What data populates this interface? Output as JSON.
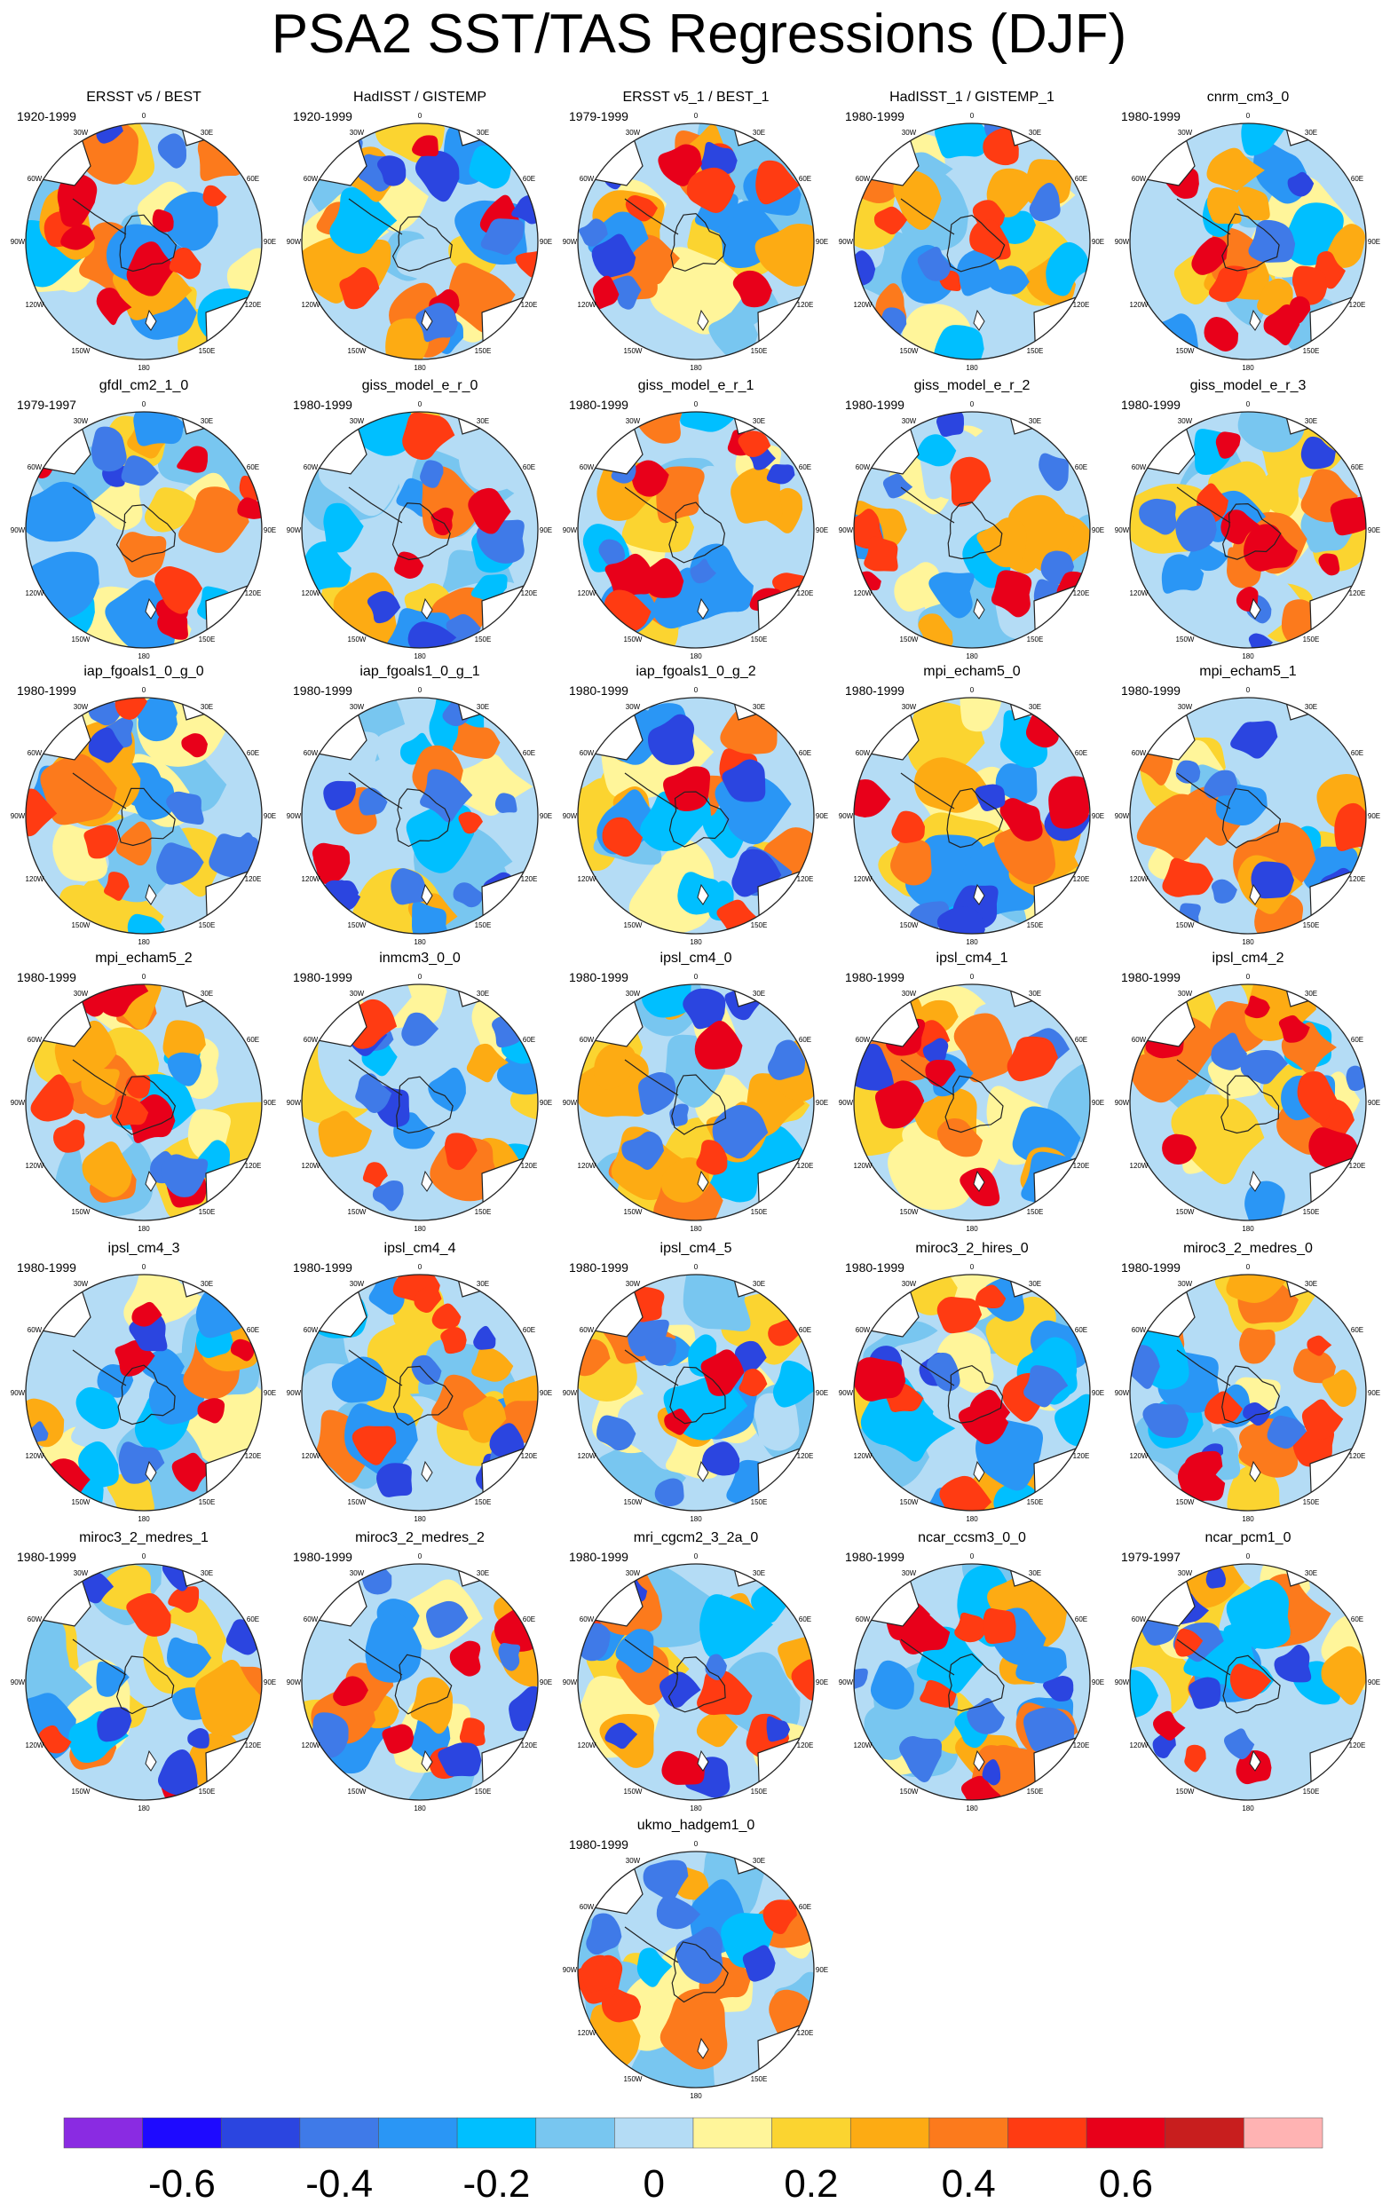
{
  "title": "PSA2 SST/TAS Regressions (DJF)",
  "panels": [
    {
      "name": "ERSST v5 / BEST",
      "period": "1920-1999"
    },
    {
      "name": "HadISST / GISTEMP",
      "period": "1920-1999"
    },
    {
      "name": "ERSST v5_1 / BEST_1",
      "period": "1979-1999"
    },
    {
      "name": "HadISST_1 / GISTEMP_1",
      "period": "1980-1999"
    },
    {
      "name": "cnrm_cm3_0",
      "period": "1980-1999"
    },
    {
      "name": "gfdl_cm2_1_0",
      "period": "1979-1997"
    },
    {
      "name": "giss_model_e_r_0",
      "period": "1980-1999"
    },
    {
      "name": "giss_model_e_r_1",
      "period": "1980-1999"
    },
    {
      "name": "giss_model_e_r_2",
      "period": "1980-1999"
    },
    {
      "name": "giss_model_e_r_3",
      "period": "1980-1999"
    },
    {
      "name": "iap_fgoals1_0_g_0",
      "period": "1980-1999"
    },
    {
      "name": "iap_fgoals1_0_g_1",
      "period": "1980-1999"
    },
    {
      "name": "iap_fgoals1_0_g_2",
      "period": "1980-1999"
    },
    {
      "name": "mpi_echam5_0",
      "period": "1980-1999"
    },
    {
      "name": "mpi_echam5_1",
      "period": "1980-1999"
    },
    {
      "name": "mpi_echam5_2",
      "period": "1980-1999"
    },
    {
      "name": "inmcm3_0_0",
      "period": "1980-1999"
    },
    {
      "name": "ipsl_cm4_0",
      "period": "1980-1999"
    },
    {
      "name": "ipsl_cm4_1",
      "period": "1980-1999"
    },
    {
      "name": "ipsl_cm4_2",
      "period": "1980-1999"
    },
    {
      "name": "ipsl_cm4_3",
      "period": "1980-1999"
    },
    {
      "name": "ipsl_cm4_4",
      "period": "1980-1999"
    },
    {
      "name": "ipsl_cm4_5",
      "period": "1980-1999"
    },
    {
      "name": "miroc3_2_hires_0",
      "period": "1980-1999"
    },
    {
      "name": "miroc3_2_medres_0",
      "period": "1980-1999"
    },
    {
      "name": "miroc3_2_medres_1",
      "period": "1980-1999"
    },
    {
      "name": "miroc3_2_medres_2",
      "period": "1980-1999"
    },
    {
      "name": "mri_cgcm2_3_2a_0",
      "period": "1980-1999"
    },
    {
      "name": "ncar_ccsm3_0_0",
      "period": "1980-1999"
    },
    {
      "name": "ncar_pcm1_0",
      "period": "1979-1997"
    },
    {
      "name": "ukmo_hadgem1_0",
      "period": "1980-1999"
    }
  ],
  "longitude_labels": [
    "0",
    "30E",
    "60E",
    "90E",
    "120E",
    "150E",
    "180",
    "150W",
    "120W",
    "90W",
    "60W",
    "30W"
  ],
  "colorbar": {
    "colors": [
      "#8a2be2",
      "#1e0aff",
      "#2b45e0",
      "#3f7ae8",
      "#2a96f5",
      "#00bfff",
      "#78c6f0",
      "#b4dcf5",
      "#fff59a",
      "#fbd430",
      "#fdab13",
      "#fc7a1c",
      "#ff3b12",
      "#e8001a",
      "#c81e1e",
      "#ffb3b3"
    ],
    "tick_labels": [
      "-0.6",
      "-0.4",
      "-0.2",
      "0",
      "0.2",
      "0.4",
      "0.6"
    ]
  }
}
